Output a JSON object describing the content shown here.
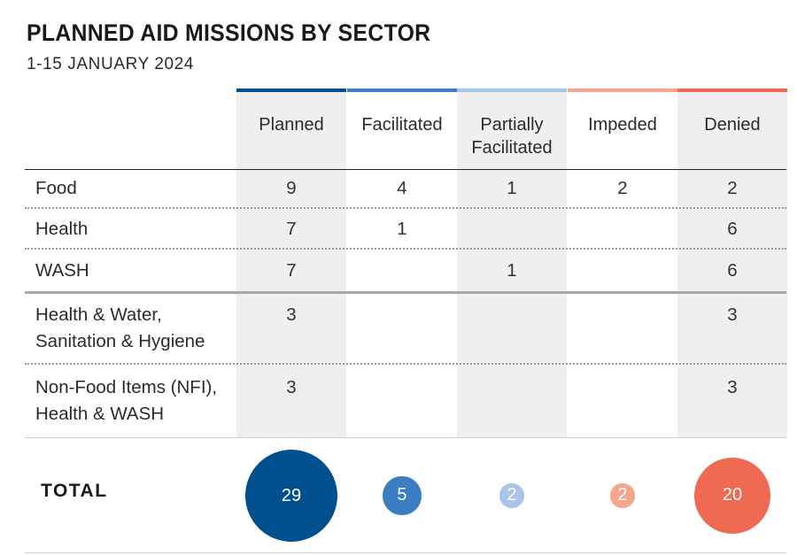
{
  "title": "PLANNED AID MISSIONS BY SECTOR",
  "subtitle": "1-15 JANUARY 2024",
  "total_label": "TOTAL",
  "colors": {
    "planned": "#004f8f",
    "facilitated": "#3a7fc2",
    "partially_facilitated": "#a8c4e6",
    "impeded": "#f6a68e",
    "denied": "#ef6a50",
    "shade": "#efefef"
  },
  "chart_data": {
    "type": "table",
    "columns": [
      "Planned",
      "Facilitated",
      "Partially Facilitated",
      "Impeded",
      "Denied"
    ],
    "column_lines": [
      [
        "Planned"
      ],
      [
        "Facilitated"
      ],
      [
        "Partially",
        "Facilitated"
      ],
      [
        "Impeded"
      ],
      [
        "Denied"
      ]
    ],
    "rows": [
      {
        "lines": [
          "Food"
        ],
        "values": [
          "9",
          "4",
          "1",
          "2",
          "2"
        ]
      },
      {
        "lines": [
          "Health"
        ],
        "values": [
          "7",
          "1",
          "",
          "",
          "6"
        ]
      },
      {
        "lines": [
          "WASH"
        ],
        "values": [
          "7",
          "",
          "1",
          "",
          "6"
        ]
      },
      {
        "lines": [
          "Health & Water,",
          "Sanitation & Hygiene"
        ],
        "values": [
          "3",
          "",
          "",
          "",
          "3"
        ]
      },
      {
        "lines": [
          "Non-Food Items (NFI),",
          "Health & WASH"
        ],
        "values": [
          "3",
          "",
          "",
          "",
          "3"
        ]
      }
    ],
    "totals": [
      29,
      5,
      2,
      2,
      20
    ]
  }
}
